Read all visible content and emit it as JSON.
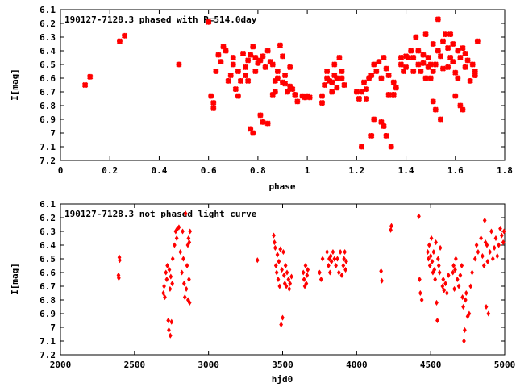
{
  "chart_data": [
    {
      "type": "scatter",
      "title": "190127-7128.3 phased with P=514.0day",
      "xlabel": "phase",
      "ylabel": "I[mag]",
      "xlim": [
        0,
        1.8
      ],
      "ylim": [
        7.2,
        6.1
      ],
      "y_inverted": true,
      "xticks": [
        "0",
        "0.2",
        "0.4",
        "0.6",
        "0.8",
        "1",
        "1.2",
        "1.4",
        "1.6",
        "1.8"
      ],
      "yticks": [
        "6.1",
        "6.2",
        "6.3",
        "6.4",
        "6.5",
        "6.6",
        "6.7",
        "6.8",
        "6.9",
        "7",
        "7.1",
        "7.2"
      ],
      "marker": "star",
      "color": "#ff0000",
      "points": [
        [
          0.1,
          6.65
        ],
        [
          0.12,
          6.59
        ],
        [
          0.24,
          6.33
        ],
        [
          0.26,
          6.29
        ],
        [
          0.48,
          6.5
        ],
        [
          0.6,
          6.19
        ],
        [
          0.61,
          6.73
        ],
        [
          0.62,
          6.82
        ],
        [
          0.62,
          6.78
        ],
        [
          0.63,
          6.55
        ],
        [
          0.64,
          6.43
        ],
        [
          0.65,
          6.48
        ],
        [
          0.66,
          6.37
        ],
        [
          0.67,
          6.4
        ],
        [
          0.68,
          6.62
        ],
        [
          0.69,
          6.58
        ],
        [
          0.7,
          6.45
        ],
        [
          0.7,
          6.5
        ],
        [
          0.71,
          6.68
        ],
        [
          0.72,
          6.55
        ],
        [
          0.72,
          6.73
        ],
        [
          0.73,
          6.62
        ],
        [
          0.74,
          6.42
        ],
        [
          0.75,
          6.52
        ],
        [
          0.75,
          6.58
        ],
        [
          0.76,
          6.47
        ],
        [
          0.76,
          6.62
        ],
        [
          0.77,
          6.43
        ],
        [
          0.77,
          6.97
        ],
        [
          0.78,
          6.37
        ],
        [
          0.78,
          7.0
        ],
        [
          0.79,
          6.55
        ],
        [
          0.79,
          6.45
        ],
        [
          0.8,
          6.49
        ],
        [
          0.81,
          6.87
        ],
        [
          0.81,
          6.47
        ],
        [
          0.82,
          6.92
        ],
        [
          0.82,
          6.44
        ],
        [
          0.83,
          6.52
        ],
        [
          0.84,
          6.93
        ],
        [
          0.84,
          6.4
        ],
        [
          0.85,
          6.48
        ],
        [
          0.86,
          6.72
        ],
        [
          0.86,
          6.5
        ],
        [
          0.87,
          6.62
        ],
        [
          0.87,
          6.7
        ],
        [
          0.88,
          6.55
        ],
        [
          0.88,
          6.6
        ],
        [
          0.89,
          6.36
        ],
        [
          0.9,
          6.63
        ],
        [
          0.9,
          6.44
        ],
        [
          0.91,
          6.64
        ],
        [
          0.91,
          6.58
        ],
        [
          0.92,
          6.7
        ],
        [
          0.93,
          6.52
        ],
        [
          0.93,
          6.66
        ],
        [
          0.94,
          6.68
        ],
        [
          0.95,
          6.72
        ],
        [
          0.96,
          6.77
        ],
        [
          0.98,
          6.73
        ],
        [
          0.99,
          6.74
        ],
        [
          1.0,
          6.73
        ],
        [
          1.01,
          6.74
        ],
        [
          1.06,
          6.78
        ],
        [
          1.06,
          6.73
        ],
        [
          1.07,
          6.65
        ],
        [
          1.08,
          6.6
        ],
        [
          1.08,
          6.55
        ],
        [
          1.09,
          6.62
        ],
        [
          1.1,
          6.63
        ],
        [
          1.1,
          6.7
        ],
        [
          1.11,
          6.58
        ],
        [
          1.11,
          6.5
        ],
        [
          1.12,
          6.6
        ],
        [
          1.12,
          6.67
        ],
        [
          1.13,
          6.45
        ],
        [
          1.14,
          6.6
        ],
        [
          1.14,
          6.55
        ],
        [
          1.15,
          6.65
        ],
        [
          1.2,
          6.7
        ],
        [
          1.21,
          6.75
        ],
        [
          1.22,
          7.1
        ],
        [
          1.22,
          6.7
        ],
        [
          1.23,
          6.63
        ],
        [
          1.24,
          6.75
        ],
        [
          1.24,
          6.68
        ],
        [
          1.25,
          6.6
        ],
        [
          1.26,
          6.58
        ],
        [
          1.26,
          7.02
        ],
        [
          1.27,
          6.9
        ],
        [
          1.27,
          6.5
        ],
        [
          1.28,
          6.55
        ],
        [
          1.29,
          6.48
        ],
        [
          1.3,
          6.92
        ],
        [
          1.3,
          6.6
        ],
        [
          1.31,
          6.95
        ],
        [
          1.31,
          6.45
        ],
        [
          1.32,
          6.53
        ],
        [
          1.32,
          7.02
        ],
        [
          1.33,
          6.58
        ],
        [
          1.33,
          6.72
        ],
        [
          1.34,
          7.1
        ],
        [
          1.35,
          6.63
        ],
        [
          1.35,
          6.72
        ],
        [
          1.36,
          6.67
        ],
        [
          1.38,
          6.5
        ],
        [
          1.38,
          6.45
        ],
        [
          1.39,
          6.55
        ],
        [
          1.4,
          6.52
        ],
        [
          1.4,
          6.44
        ],
        [
          1.41,
          6.45
        ],
        [
          1.42,
          6.4
        ],
        [
          1.43,
          6.45
        ],
        [
          1.43,
          6.55
        ],
        [
          1.44,
          6.3
        ],
        [
          1.45,
          6.5
        ],
        [
          1.45,
          6.4
        ],
        [
          1.46,
          6.55
        ],
        [
          1.47,
          6.49
        ],
        [
          1.47,
          6.43
        ],
        [
          1.48,
          6.6
        ],
        [
          1.48,
          6.28
        ],
        [
          1.49,
          6.52
        ],
        [
          1.49,
          6.45
        ],
        [
          1.5,
          6.5
        ],
        [
          1.5,
          6.6
        ],
        [
          1.51,
          6.77
        ],
        [
          1.51,
          6.55
        ],
        [
          1.51,
          6.35
        ],
        [
          1.52,
          6.83
        ],
        [
          1.52,
          6.5
        ],
        [
          1.53,
          6.4
        ],
        [
          1.53,
          6.17
        ],
        [
          1.54,
          6.44
        ],
        [
          1.54,
          6.9
        ],
        [
          1.55,
          6.33
        ],
        [
          1.55,
          6.53
        ],
        [
          1.56,
          6.28
        ],
        [
          1.57,
          6.38
        ],
        [
          1.57,
          6.52
        ],
        [
          1.58,
          6.28
        ],
        [
          1.58,
          6.45
        ],
        [
          1.59,
          6.35
        ],
        [
          1.59,
          6.48
        ],
        [
          1.6,
          6.73
        ],
        [
          1.6,
          6.56
        ],
        [
          1.61,
          6.4
        ],
        [
          1.61,
          6.6
        ],
        [
          1.62,
          6.8
        ],
        [
          1.62,
          6.45
        ],
        [
          1.63,
          6.38
        ],
        [
          1.63,
          6.83
        ],
        [
          1.64,
          6.52
        ],
        [
          1.64,
          6.42
        ],
        [
          1.65,
          6.47
        ],
        [
          1.66,
          6.62
        ],
        [
          1.67,
          6.5
        ],
        [
          1.68,
          6.58
        ],
        [
          1.68,
          6.55
        ],
        [
          1.69,
          6.33
        ]
      ]
    },
    {
      "type": "scatter",
      "title": "190127-7128.3 not phased light curve",
      "xlabel": "hjd0",
      "ylabel": "I[mag]",
      "xlim": [
        2000,
        5000
      ],
      "ylim": [
        7.2,
        6.1
      ],
      "y_inverted": true,
      "xticks": [
        "2000",
        "2500",
        "3000",
        "3500",
        "4000",
        "4500",
        "5000"
      ],
      "yticks": [
        "6.1",
        "6.2",
        "6.3",
        "6.4",
        "6.5",
        "6.6",
        "6.7",
        "6.8",
        "6.9",
        "7",
        "7.1",
        "7.2"
      ],
      "marker": "diamond",
      "color": "#ff0000",
      "points": [
        [
          2392,
          6.62
        ],
        [
          2394,
          6.64
        ],
        [
          2398,
          6.49
        ],
        [
          2400,
          6.51
        ],
        [
          2695,
          6.75
        ],
        [
          2700,
          6.7
        ],
        [
          2705,
          6.78
        ],
        [
          2712,
          6.6
        ],
        [
          2718,
          6.65
        ],
        [
          2722,
          6.55
        ],
        [
          2728,
          6.95
        ],
        [
          2732,
          7.02
        ],
        [
          2735,
          6.58
        ],
        [
          2740,
          6.72
        ],
        [
          2742,
          7.06
        ],
        [
          2745,
          6.63
        ],
        [
          2750,
          6.96
        ],
        [
          2755,
          6.68
        ],
        [
          2758,
          6.5
        ],
        [
          2770,
          6.4
        ],
        [
          2778,
          6.3
        ],
        [
          2785,
          6.35
        ],
        [
          2790,
          6.28
        ],
        [
          2800,
          6.27
        ],
        [
          2810,
          6.45
        ],
        [
          2820,
          6.6
        ],
        [
          2825,
          6.3
        ],
        [
          2830,
          6.5
        ],
        [
          2835,
          6.68
        ],
        [
          2840,
          6.78
        ],
        [
          2845,
          6.17
        ],
        [
          2850,
          6.72
        ],
        [
          2855,
          6.55
        ],
        [
          2860,
          6.4
        ],
        [
          2862,
          6.8
        ],
        [
          2865,
          6.35
        ],
        [
          2868,
          6.65
        ],
        [
          2870,
          6.38
        ],
        [
          2872,
          6.82
        ],
        [
          2875,
          6.3
        ],
        [
          3330,
          6.51
        ],
        [
          3440,
          6.33
        ],
        [
          3445,
          6.38
        ],
        [
          3450,
          6.42
        ],
        [
          3455,
          6.55
        ],
        [
          3460,
          6.6
        ],
        [
          3465,
          6.47
        ],
        [
          3470,
          6.65
        ],
        [
          3475,
          6.52
        ],
        [
          3480,
          6.7
        ],
        [
          3485,
          6.43
        ],
        [
          3490,
          6.98
        ],
        [
          3495,
          6.58
        ],
        [
          3500,
          6.93
        ],
        [
          3505,
          6.45
        ],
        [
          3510,
          6.62
        ],
        [
          3515,
          6.68
        ],
        [
          3520,
          6.55
        ],
        [
          3525,
          6.7
        ],
        [
          3530,
          6.6
        ],
        [
          3540,
          6.65
        ],
        [
          3545,
          6.72
        ],
        [
          3550,
          6.68
        ],
        [
          3560,
          6.63
        ],
        [
          3640,
          6.6
        ],
        [
          3645,
          6.65
        ],
        [
          3650,
          6.7
        ],
        [
          3655,
          6.55
        ],
        [
          3660,
          6.68
        ],
        [
          3665,
          6.62
        ],
        [
          3670,
          6.58
        ],
        [
          3750,
          6.6
        ],
        [
          3760,
          6.65
        ],
        [
          3770,
          6.5
        ],
        [
          3800,
          6.45
        ],
        [
          3810,
          6.55
        ],
        [
          3815,
          6.5
        ],
        [
          3820,
          6.6
        ],
        [
          3825,
          6.48
        ],
        [
          3830,
          6.52
        ],
        [
          3840,
          6.45
        ],
        [
          3850,
          6.5
        ],
        [
          3860,
          6.55
        ],
        [
          3870,
          6.5
        ],
        [
          3880,
          6.6
        ],
        [
          3890,
          6.45
        ],
        [
          3900,
          6.62
        ],
        [
          3910,
          6.55
        ],
        [
          3915,
          6.5
        ],
        [
          3920,
          6.45
        ],
        [
          3925,
          6.58
        ],
        [
          3930,
          6.52
        ],
        [
          4165,
          6.59
        ],
        [
          4170,
          6.66
        ],
        [
          4230,
          6.29
        ],
        [
          4235,
          6.26
        ],
        [
          4420,
          6.19
        ],
        [
          4425,
          6.65
        ],
        [
          4430,
          6.75
        ],
        [
          4440,
          6.8
        ],
        [
          4480,
          6.45
        ],
        [
          4485,
          6.5
        ],
        [
          4490,
          6.4
        ],
        [
          4495,
          6.55
        ],
        [
          4500,
          6.48
        ],
        [
          4505,
          6.35
        ],
        [
          4510,
          6.52
        ],
        [
          4515,
          6.6
        ],
        [
          4520,
          6.45
        ],
        [
          4525,
          6.58
        ],
        [
          4530,
          6.65
        ],
        [
          4535,
          6.38
        ],
        [
          4540,
          6.82
        ],
        [
          4545,
          6.95
        ],
        [
          4550,
          6.5
        ],
        [
          4555,
          6.55
        ],
        [
          4560,
          6.6
        ],
        [
          4565,
          6.42
        ],
        [
          4580,
          6.7
        ],
        [
          4585,
          6.65
        ],
        [
          4590,
          6.73
        ],
        [
          4600,
          6.68
        ],
        [
          4610,
          6.75
        ],
        [
          4620,
          6.62
        ],
        [
          4650,
          6.6
        ],
        [
          4655,
          6.55
        ],
        [
          4660,
          6.72
        ],
        [
          4665,
          6.58
        ],
        [
          4670,
          6.5
        ],
        [
          4680,
          6.65
        ],
        [
          4690,
          6.7
        ],
        [
          4700,
          6.62
        ],
        [
          4710,
          6.55
        ],
        [
          4715,
          6.78
        ],
        [
          4720,
          6.85
        ],
        [
          4725,
          7.1
        ],
        [
          4730,
          7.02
        ],
        [
          4735,
          6.8
        ],
        [
          4740,
          6.75
        ],
        [
          4750,
          6.92
        ],
        [
          4760,
          6.9
        ],
        [
          4770,
          6.7
        ],
        [
          4780,
          6.6
        ],
        [
          4800,
          6.5
        ],
        [
          4810,
          6.4
        ],
        [
          4820,
          6.45
        ],
        [
          4840,
          6.35
        ],
        [
          4850,
          6.48
        ],
        [
          4860,
          6.55
        ],
        [
          4865,
          6.22
        ],
        [
          4870,
          6.38
        ],
        [
          4875,
          6.85
        ],
        [
          4880,
          6.4
        ],
        [
          4885,
          6.52
        ],
        [
          4890,
          6.9
        ],
        [
          4900,
          6.45
        ],
        [
          4910,
          6.3
        ],
        [
          4920,
          6.5
        ],
        [
          4930,
          6.42
        ],
        [
          4940,
          6.35
        ],
        [
          4950,
          6.48
        ],
        [
          4960,
          6.4
        ],
        [
          4970,
          6.28
        ],
        [
          4980,
          6.33
        ],
        [
          4990,
          6.38
        ],
        [
          4995,
          6.3
        ]
      ]
    }
  ]
}
